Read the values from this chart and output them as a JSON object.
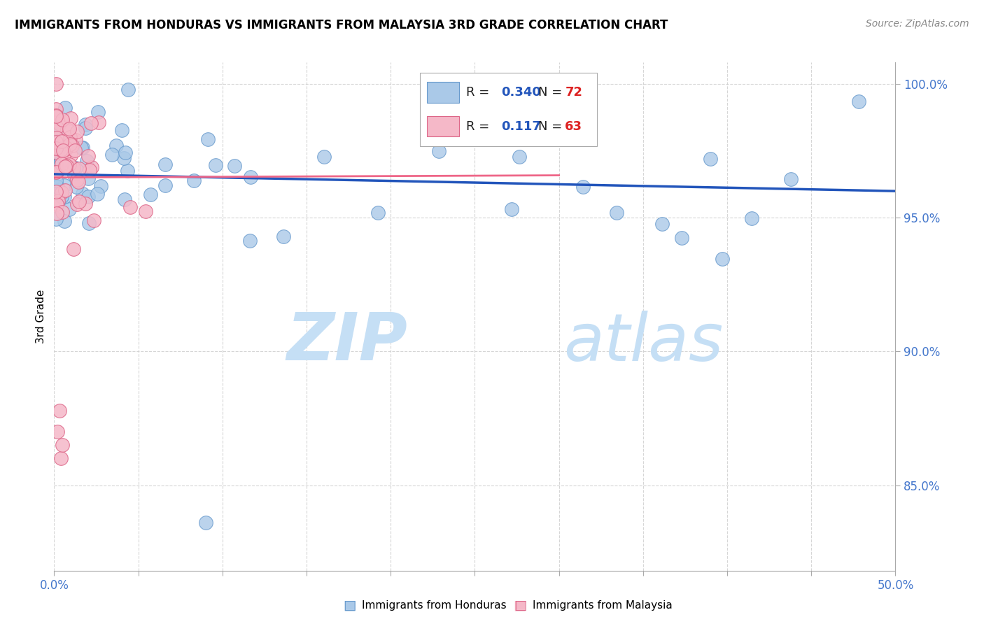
{
  "title": "IMMIGRANTS FROM HONDURAS VS IMMIGRANTS FROM MALAYSIA 3RD GRADE CORRELATION CHART",
  "source": "Source: ZipAtlas.com",
  "ylabel": "3rd Grade",
  "xlim": [
    0.0,
    0.5
  ],
  "ylim": [
    0.818,
    1.008
  ],
  "xtick_positions": [
    0.0,
    0.05,
    0.1,
    0.15,
    0.2,
    0.25,
    0.3,
    0.35,
    0.4,
    0.45,
    0.5
  ],
  "ytick_positions": [
    0.85,
    0.9,
    0.95,
    1.0
  ],
  "series_honduras": {
    "label": "Immigrants from Honduras",
    "color": "#aac9e8",
    "edge_color": "#6699cc",
    "R": 0.34,
    "N": 72,
    "trend_color": "#2255bb",
    "trend_style": "-"
  },
  "series_malaysia": {
    "label": "Immigrants from Malaysia",
    "color": "#f5b8c8",
    "edge_color": "#dd6688",
    "R": 0.117,
    "N": 63,
    "trend_color": "#ee6688",
    "trend_style": "-"
  },
  "watermark_zip": "ZIP",
  "watermark_atlas": "atlas",
  "watermark_color": "#c8dff0",
  "legend_box_color": "#aac9e8",
  "legend_box_color2": "#f5b8c8",
  "legend_R_color": "#2255bb",
  "legend_N_color": "#dd2222",
  "background_color": "#ffffff",
  "grid_color": "#cccccc",
  "tick_color": "#4477cc",
  "title_fontsize": 12,
  "source_fontsize": 10
}
